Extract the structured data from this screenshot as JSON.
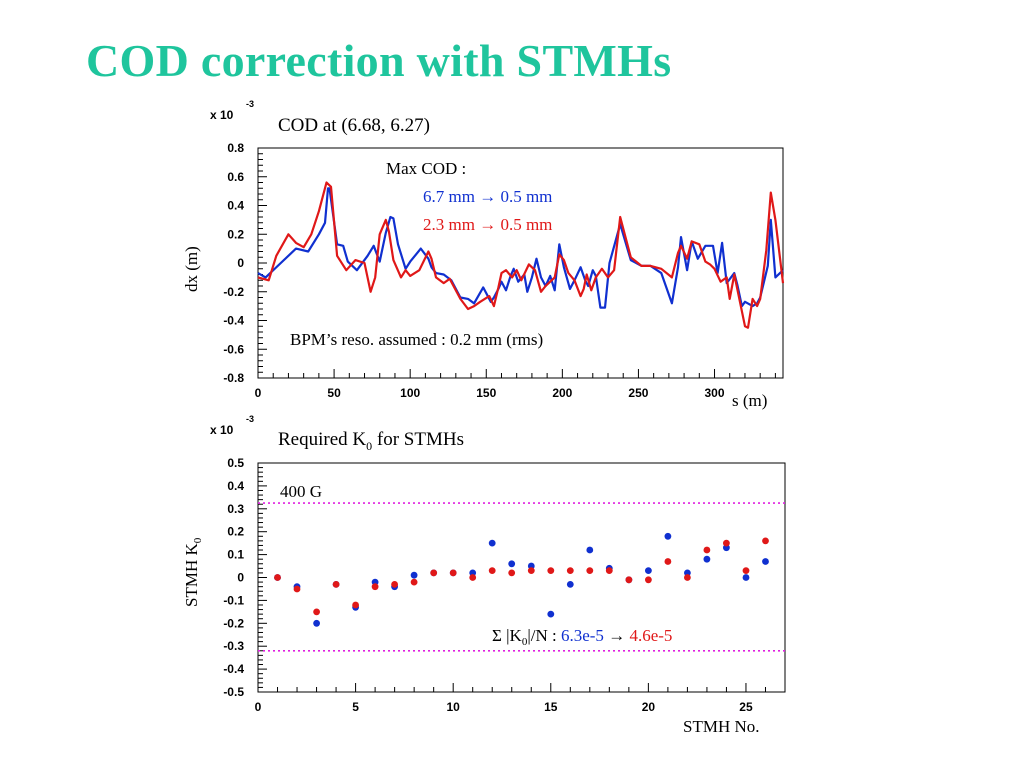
{
  "slide": {
    "title": "COD correction with STMHs"
  },
  "colors": {
    "title": "#1fc59d",
    "before": "#1030d0",
    "after": "#e01818",
    "limit": "#e020e0"
  },
  "chart_data": [
    {
      "type": "line",
      "title": "COD at (6.68, 6.27)",
      "xlabel": "s (m)",
      "ylabel": "dx (m)",
      "yscale_label": {
        "base": "x 10",
        "exp": "-3"
      },
      "xlim": [
        0,
        345
      ],
      "ylim": [
        -0.8,
        0.8
      ],
      "xticks": [
        0,
        50,
        100,
        150,
        200,
        250,
        300
      ],
      "xtick_labels": [
        "0",
        "50",
        "100",
        "150",
        "200",
        "250",
        "300"
      ],
      "yticks": [
        -0.8,
        -0.6,
        -0.4,
        -0.2,
        0,
        0.2,
        0.4,
        0.6,
        0.8
      ],
      "ytick_labels": [
        "-0.8",
        "-0.6",
        "-0.4",
        "-0.2",
        "0",
        "0.2",
        "0.4",
        "0.6",
        "0.8"
      ],
      "annotations": {
        "max_cod_label": "Max COD :",
        "before_line": "6.7 mm → 0.5 mm",
        "after_line": "2.3 mm → 0.5 mm",
        "bpm_note": "BPM’s reso. assumed : 0.2 mm (rms)"
      },
      "series": [
        {
          "color": "#1030d0",
          "x": [
            0,
            5,
            15,
            25,
            33,
            40,
            44,
            46,
            47,
            52,
            56,
            59,
            65,
            72,
            76,
            80,
            84,
            87,
            89,
            92,
            97,
            100,
            107,
            112,
            114,
            117,
            122,
            127,
            133,
            138,
            142,
            148,
            153,
            155,
            158,
            160,
            163,
            166,
            168,
            171,
            175,
            177,
            180,
            183,
            186,
            189,
            192,
            195,
            198,
            201,
            205,
            208,
            212,
            215,
            217,
            220,
            222,
            225,
            228,
            231,
            238,
            245,
            252,
            258,
            265,
            272,
            276,
            278,
            282,
            285,
            289,
            294,
            297,
            299,
            302,
            305,
            308,
            313,
            315,
            318,
            320,
            325,
            328,
            330,
            335,
            337,
            340,
            345
          ],
          "y": [
            -0.07,
            -0.1,
            0.0,
            0.1,
            0.08,
            0.2,
            0.28,
            0.52,
            0.52,
            0.13,
            0.12,
            0.01,
            -0.05,
            0.05,
            0.12,
            0.01,
            0.21,
            0.32,
            0.31,
            0.13,
            -0.04,
            0.01,
            0.1,
            0.03,
            -0.03,
            -0.07,
            -0.08,
            -0.12,
            -0.24,
            -0.25,
            -0.28,
            -0.17,
            -0.27,
            -0.24,
            -0.18,
            -0.13,
            -0.19,
            -0.09,
            -0.04,
            -0.13,
            -0.08,
            -0.2,
            -0.1,
            0.03,
            -0.1,
            -0.16,
            -0.09,
            -0.19,
            0.13,
            -0.03,
            -0.18,
            -0.12,
            -0.03,
            -0.12,
            -0.16,
            -0.05,
            -0.09,
            -0.31,
            -0.31,
            0.0,
            0.27,
            0.02,
            -0.02,
            -0.02,
            -0.07,
            -0.28,
            -0.03,
            0.18,
            -0.05,
            0.15,
            0.03,
            0.12,
            0.12,
            0.12,
            -0.07,
            0.14,
            -0.14,
            -0.07,
            -0.15,
            -0.3,
            -0.27,
            -0.3,
            -0.28,
            -0.24,
            -0.02,
            0.3,
            -0.1,
            -0.05
          ]
        },
        {
          "color": "#e01818",
          "x": [
            0,
            7,
            12,
            20,
            25,
            30,
            35,
            40,
            45,
            48,
            52,
            58,
            64,
            70,
            74,
            77,
            80,
            84,
            86,
            89,
            94,
            97,
            100,
            106,
            112,
            114,
            117,
            122,
            126,
            133,
            138,
            142,
            146,
            152,
            155,
            158,
            160,
            163,
            167,
            170,
            173,
            178,
            182,
            186,
            189,
            192,
            195,
            198,
            201,
            204,
            208,
            212,
            214,
            216,
            219,
            222,
            226,
            230,
            234,
            238,
            245,
            252,
            258,
            265,
            272,
            276,
            278,
            282,
            285,
            290,
            294,
            297,
            300,
            304,
            308,
            310,
            313,
            320,
            322,
            325,
            328,
            330,
            334,
            337,
            340,
            345
          ],
          "y": [
            -0.1,
            -0.12,
            0.05,
            0.2,
            0.14,
            0.11,
            0.2,
            0.36,
            0.56,
            0.53,
            0.05,
            -0.05,
            0.02,
            0.0,
            -0.2,
            -0.1,
            0.2,
            0.3,
            0.22,
            0.02,
            -0.1,
            -0.05,
            -0.09,
            -0.05,
            0.08,
            0.03,
            -0.1,
            -0.14,
            -0.11,
            -0.25,
            -0.32,
            -0.3,
            -0.27,
            -0.23,
            -0.3,
            -0.17,
            -0.07,
            -0.05,
            -0.1,
            -0.05,
            -0.12,
            -0.01,
            -0.05,
            -0.2,
            -0.16,
            -0.13,
            -0.1,
            0.06,
            0.02,
            -0.07,
            -0.12,
            -0.23,
            -0.18,
            -0.08,
            -0.19,
            -0.1,
            -0.04,
            -0.1,
            -0.05,
            0.32,
            0.04,
            -0.02,
            -0.02,
            -0.04,
            -0.1,
            0.07,
            0.12,
            0.03,
            0.15,
            0.13,
            0.01,
            -0.01,
            -0.04,
            -0.13,
            -0.1,
            -0.25,
            -0.08,
            -0.44,
            -0.45,
            -0.25,
            -0.3,
            -0.25,
            0.09,
            0.49,
            0.3,
            -0.14
          ]
        }
      ]
    },
    {
      "type": "scatter",
      "title": "Required K",
      "title_sub": "0",
      "title_tail": " for STMHs",
      "xlabel": "STMH No.",
      "ylabel": "STMH K",
      "ylabel_sub": "0",
      "yscale_label": {
        "base": "x 10",
        "exp": "-3"
      },
      "xlim": [
        0,
        27
      ],
      "ylim": [
        -0.5,
        0.5
      ],
      "xticks": [
        0,
        5,
        10,
        15,
        20,
        25
      ],
      "xtick_labels": [
        "0",
        "5",
        "10",
        "15",
        "20",
        "25"
      ],
      "yticks": [
        -0.5,
        -0.4,
        -0.3,
        -0.2,
        -0.1,
        0,
        0.1,
        0.2,
        0.3,
        0.4,
        0.5
      ],
      "ytick_labels": [
        "-0.5",
        "-0.4",
        "-0.3",
        "-0.2",
        "-0.1",
        "0",
        "0.1",
        "0.2",
        "0.3",
        "0.4",
        "0.5"
      ],
      "limit_lines": [
        0.325,
        -0.32
      ],
      "limit_label": "400 G",
      "annotations": {
        "sum_prefix": "Σ |K",
        "sum_sub": "0",
        "sum_mid": "|/N : ",
        "sum_before": "6.3e-5",
        "sum_arrow": " → ",
        "sum_after": "4.6e-5"
      },
      "series": [
        {
          "color": "#1030d0",
          "x": [
            1,
            2,
            3,
            4,
            5,
            6,
            7,
            8,
            9,
            10,
            11,
            12,
            13,
            14,
            15,
            16,
            17,
            18,
            19,
            20,
            21,
            22,
            23,
            24,
            25,
            26
          ],
          "y": [
            0.0,
            -0.04,
            -0.2,
            -0.03,
            -0.13,
            -0.02,
            -0.04,
            0.01,
            0.02,
            0.02,
            0.02,
            0.15,
            0.06,
            0.05,
            -0.16,
            -0.03,
            0.12,
            0.04,
            -0.01,
            0.03,
            0.18,
            0.02,
            0.08,
            0.13,
            0.0,
            0.07
          ]
        },
        {
          "color": "#e01818",
          "x": [
            1,
            2,
            3,
            4,
            5,
            6,
            7,
            8,
            9,
            10,
            11,
            12,
            13,
            14,
            15,
            16,
            17,
            18,
            19,
            20,
            21,
            22,
            23,
            24,
            25,
            26
          ],
          "y": [
            0.0,
            -0.05,
            -0.15,
            -0.03,
            -0.12,
            -0.04,
            -0.03,
            -0.02,
            0.02,
            0.02,
            0.0,
            0.03,
            0.02,
            0.03,
            0.03,
            0.03,
            0.03,
            0.03,
            -0.01,
            -0.01,
            0.07,
            0.0,
            0.12,
            0.15,
            0.03,
            0.16
          ]
        }
      ]
    }
  ]
}
